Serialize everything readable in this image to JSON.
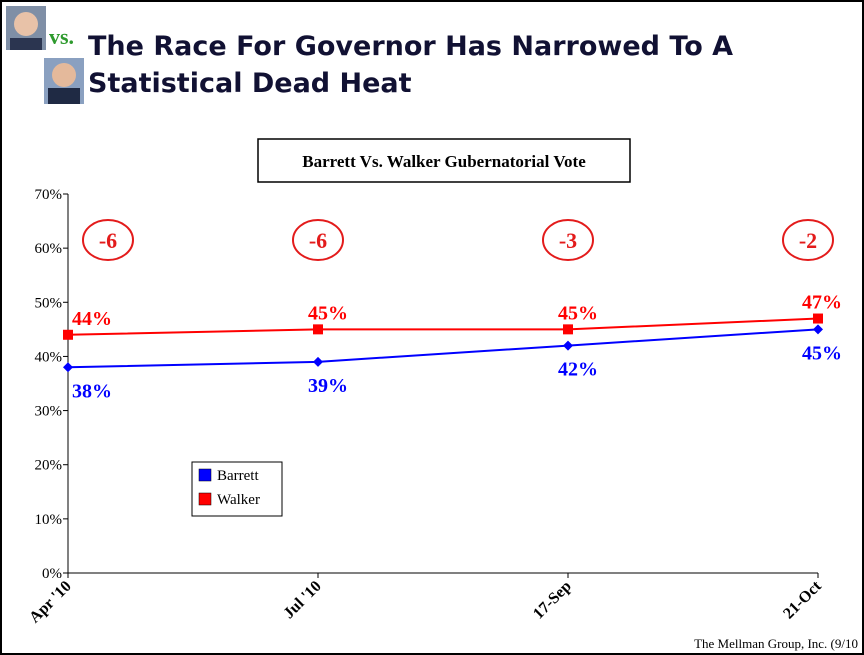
{
  "header": {
    "vs": "vs.",
    "title_line1": "The Race For Governor Has Narrowed To A",
    "title_line2": "Statistical Dead Heat"
  },
  "footer": {
    "source": "The Mellman Group, Inc. (9/10"
  },
  "chart_data": {
    "type": "line",
    "title": "Barrett Vs. Walker Gubernatorial Vote",
    "categories": [
      "Apr '10",
      "Jul '10",
      "17-Sep",
      "21-Oct"
    ],
    "series": [
      {
        "name": "Barrett",
        "color": "#0000ff",
        "marker": "diamond",
        "values": [
          38,
          39,
          42,
          45
        ],
        "value_labels": [
          "38%",
          "39%",
          "42%",
          "45%"
        ]
      },
      {
        "name": "Walker",
        "color": "#ff0000",
        "marker": "square",
        "values": [
          44,
          45,
          45,
          47
        ],
        "value_labels": [
          "44%",
          "45%",
          "45%",
          "47%"
        ]
      }
    ],
    "annotations": [
      "-6",
      "-6",
      "-3",
      "-2"
    ],
    "ylim": [
      0,
      70
    ],
    "yticks": [
      {
        "value": 0,
        "label": "0%"
      },
      {
        "value": 10,
        "label": "10%"
      },
      {
        "value": 20,
        "label": "20%"
      },
      {
        "value": 30,
        "label": "30%"
      },
      {
        "value": 40,
        "label": "40%"
      },
      {
        "value": 50,
        "label": "50%"
      },
      {
        "value": 60,
        "label": "60%"
      },
      {
        "value": 70,
        "label": "70%"
      }
    ],
    "grid": false,
    "legend": "lower left"
  }
}
